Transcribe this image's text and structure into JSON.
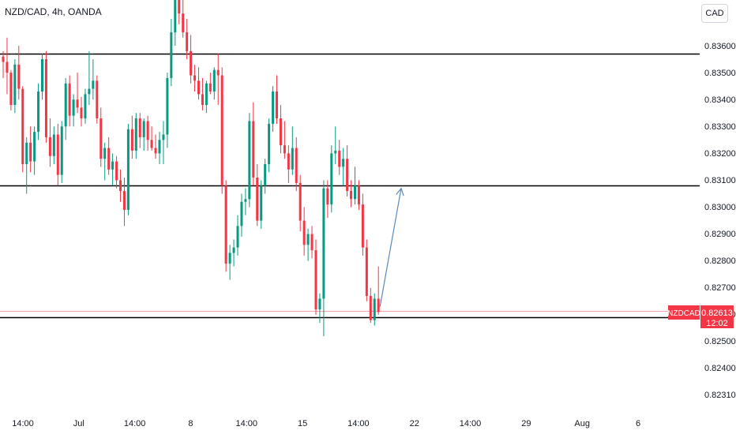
{
  "header": {
    "symbol_title": "NZD/CAD, 4h, OANDA",
    "currency_button": "CAD"
  },
  "price_tag": {
    "symbol": "NZDCAD",
    "price": "0.82613",
    "countdown": "12:02"
  },
  "colors": {
    "up": "#089981",
    "down": "#f23645",
    "level_line": "#000000",
    "arrow": "#5b8ab8",
    "price_line": "#f7a1a8"
  },
  "chart_data": {
    "type": "candlestick",
    "title": "NZD/CAD, 4h, OANDA",
    "ylim": [
      0.8223,
      0.8379
    ],
    "yticks": [
      "0.83600",
      "0.83500",
      "0.83400",
      "0.83300",
      "0.83200",
      "0.83100",
      "0.83000",
      "0.82900",
      "0.82800",
      "0.82700",
      "0.82600",
      "0.82500",
      "0.82400",
      "0.82310"
    ],
    "xticks": [
      "14:00",
      "Jul",
      "14:00",
      "8",
      "14:00",
      "15",
      "14:00",
      "22",
      "14:00",
      "29",
      "Aug",
      "6"
    ],
    "horizontal_levels": [
      0.8357,
      0.8308,
      0.8259
    ],
    "current_price": 0.82613,
    "projection_arrow": {
      "from": 0.8263,
      "to": 0.8307
    },
    "candles": [
      [
        0.8356,
        0.8358,
        0.8348,
        0.8354
      ],
      [
        0.8354,
        0.8363,
        0.8342,
        0.835
      ],
      [
        0.835,
        0.8351,
        0.8336,
        0.8338
      ],
      [
        0.8338,
        0.8355,
        0.8335,
        0.8353
      ],
      [
        0.8353,
        0.836,
        0.834,
        0.8344
      ],
      [
        0.8344,
        0.8345,
        0.8313,
        0.8316
      ],
      [
        0.8316,
        0.8326,
        0.8305,
        0.8324
      ],
      [
        0.8324,
        0.833,
        0.8313,
        0.8317
      ],
      [
        0.8317,
        0.833,
        0.8312,
        0.8328
      ],
      [
        0.8328,
        0.8346,
        0.8325,
        0.8343
      ],
      [
        0.8343,
        0.8357,
        0.834,
        0.8355
      ],
      [
        0.8355,
        0.8358,
        0.8324,
        0.8326
      ],
      [
        0.8326,
        0.8333,
        0.8315,
        0.8319
      ],
      [
        0.8319,
        0.833,
        0.8316,
        0.8327
      ],
      [
        0.8327,
        0.8331,
        0.8308,
        0.8312
      ],
      [
        0.8312,
        0.8332,
        0.8309,
        0.833
      ],
      [
        0.833,
        0.8348,
        0.8325,
        0.8346
      ],
      [
        0.8346,
        0.8349,
        0.833,
        0.8334
      ],
      [
        0.8334,
        0.8342,
        0.833,
        0.834
      ],
      [
        0.834,
        0.835,
        0.8335,
        0.8337
      ],
      [
        0.8337,
        0.8341,
        0.833,
        0.8333
      ],
      [
        0.8333,
        0.8344,
        0.8331,
        0.8342
      ],
      [
        0.8342,
        0.8358,
        0.8338,
        0.8344
      ],
      [
        0.8344,
        0.8355,
        0.834,
        0.8347
      ],
      [
        0.8347,
        0.8349,
        0.8331,
        0.8333
      ],
      [
        0.8333,
        0.8337,
        0.8315,
        0.8318
      ],
      [
        0.8318,
        0.8324,
        0.831,
        0.8322
      ],
      [
        0.8322,
        0.8326,
        0.8312,
        0.8314
      ],
      [
        0.8314,
        0.832,
        0.8308,
        0.8317
      ],
      [
        0.8317,
        0.8319,
        0.8307,
        0.831
      ],
      [
        0.831,
        0.8314,
        0.8302,
        0.8306
      ],
      [
        0.8306,
        0.8311,
        0.8293,
        0.8299
      ],
      [
        0.8299,
        0.8331,
        0.8297,
        0.8329
      ],
      [
        0.8329,
        0.8334,
        0.8318,
        0.8321
      ],
      [
        0.8321,
        0.8335,
        0.8318,
        0.8333
      ],
      [
        0.8333,
        0.8335,
        0.8322,
        0.8326
      ],
      [
        0.8326,
        0.8333,
        0.8321,
        0.8332
      ],
      [
        0.8332,
        0.8334,
        0.8321,
        0.8325
      ],
      [
        0.8325,
        0.833,
        0.8321,
        0.8322
      ],
      [
        0.8322,
        0.8327,
        0.8318,
        0.832
      ],
      [
        0.832,
        0.8328,
        0.8316,
        0.8325
      ],
      [
        0.8325,
        0.8332,
        0.8316,
        0.8327
      ],
      [
        0.8327,
        0.835,
        0.8322,
        0.8348
      ],
      [
        0.8348,
        0.837,
        0.8345,
        0.8365
      ],
      [
        0.8365,
        0.838,
        0.836,
        0.8377
      ],
      [
        0.8377,
        0.838,
        0.8368,
        0.8372
      ],
      [
        0.8372,
        0.8378,
        0.8363,
        0.8365
      ],
      [
        0.8365,
        0.837,
        0.8355,
        0.8358
      ],
      [
        0.8358,
        0.8364,
        0.8346,
        0.8349
      ],
      [
        0.8349,
        0.8353,
        0.8343,
        0.8347
      ],
      [
        0.8347,
        0.8352,
        0.834,
        0.8342
      ],
      [
        0.8342,
        0.8348,
        0.8336,
        0.8338
      ],
      [
        0.8338,
        0.8347,
        0.8335,
        0.8346
      ],
      [
        0.8346,
        0.835,
        0.8342,
        0.8343
      ],
      [
        0.8343,
        0.8352,
        0.834,
        0.8351
      ],
      [
        0.8351,
        0.8357,
        0.8338,
        0.8349
      ],
      [
        0.8349,
        0.8352,
        0.8305,
        0.8308
      ],
      [
        0.8308,
        0.831,
        0.8276,
        0.8279
      ],
      [
        0.8279,
        0.8286,
        0.8273,
        0.8283
      ],
      [
        0.8283,
        0.8288,
        0.8278,
        0.8285
      ],
      [
        0.8285,
        0.8297,
        0.8282,
        0.8293
      ],
      [
        0.8293,
        0.8305,
        0.8289,
        0.8302
      ],
      [
        0.8302,
        0.8307,
        0.8297,
        0.8303
      ],
      [
        0.8303,
        0.8335,
        0.83,
        0.8332
      ],
      [
        0.8332,
        0.8339,
        0.8308,
        0.8311
      ],
      [
        0.8311,
        0.8316,
        0.8293,
        0.8295
      ],
      [
        0.8295,
        0.831,
        0.8292,
        0.8308
      ],
      [
        0.8308,
        0.8318,
        0.8305,
        0.8316
      ],
      [
        0.8316,
        0.8333,
        0.8313,
        0.8331
      ],
      [
        0.8331,
        0.8345,
        0.8328,
        0.8343
      ],
      [
        0.8343,
        0.8349,
        0.8331,
        0.8333
      ],
      [
        0.8333,
        0.8338,
        0.832,
        0.8323
      ],
      [
        0.8323,
        0.8332,
        0.8318,
        0.832
      ],
      [
        0.832,
        0.8323,
        0.8309,
        0.8314
      ],
      [
        0.8314,
        0.833,
        0.8312,
        0.8322
      ],
      [
        0.8322,
        0.8326,
        0.8306,
        0.8309
      ],
      [
        0.8309,
        0.8312,
        0.8291,
        0.8295
      ],
      [
        0.8295,
        0.83,
        0.8282,
        0.8286
      ],
      [
        0.8286,
        0.8292,
        0.828,
        0.829
      ],
      [
        0.829,
        0.8293,
        0.8281,
        0.8284
      ],
      [
        0.8284,
        0.8288,
        0.826,
        0.8262
      ],
      [
        0.8262,
        0.8268,
        0.8257,
        0.8266
      ],
      [
        0.8266,
        0.831,
        0.8252,
        0.8307
      ],
      [
        0.8307,
        0.831,
        0.8296,
        0.8301
      ],
      [
        0.8301,
        0.8323,
        0.8298,
        0.832
      ],
      [
        0.832,
        0.833,
        0.8316,
        0.8321
      ],
      [
        0.8321,
        0.8325,
        0.8312,
        0.8315
      ],
      [
        0.8315,
        0.8322,
        0.8308,
        0.8318
      ],
      [
        0.8318,
        0.8323,
        0.8304,
        0.8306
      ],
      [
        0.8306,
        0.831,
        0.83,
        0.8303
      ],
      [
        0.8303,
        0.8315,
        0.8301,
        0.8308
      ],
      [
        0.8308,
        0.831,
        0.8299,
        0.8301
      ],
      [
        0.8301,
        0.8305,
        0.8282,
        0.8285
      ],
      [
        0.8285,
        0.8288,
        0.8265,
        0.8267
      ],
      [
        0.8267,
        0.827,
        0.8257,
        0.8258
      ],
      [
        0.8258,
        0.8268,
        0.8256,
        0.8266
      ],
      [
        0.8266,
        0.8278,
        0.826,
        0.8261
      ]
    ]
  }
}
